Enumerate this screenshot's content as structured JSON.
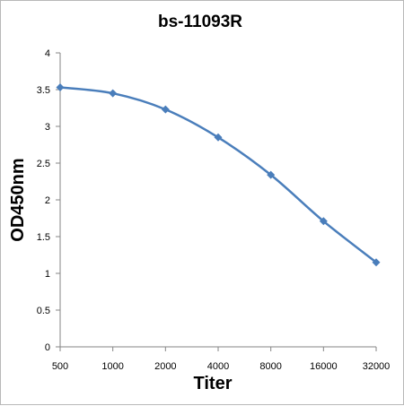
{
  "chart_data": {
    "type": "line",
    "title": "bs-11093R",
    "xlabel": "Titer",
    "ylabel": "OD450nm",
    "categories": [
      "500",
      "1000",
      "2000",
      "4000",
      "8000",
      "16000",
      "32000"
    ],
    "series": [
      {
        "values": [
          3.53,
          3.45,
          3.23,
          2.85,
          2.34,
          1.71,
          1.15
        ]
      }
    ],
    "yticks": [
      "0",
      "0.5",
      "1",
      "1.5",
      "2",
      "2.5",
      "3",
      "3.5",
      "4"
    ],
    "ylim": [
      0,
      4
    ],
    "grid": false,
    "legend": "none",
    "line_color": "#4a7ebb",
    "marker": "diamond"
  }
}
